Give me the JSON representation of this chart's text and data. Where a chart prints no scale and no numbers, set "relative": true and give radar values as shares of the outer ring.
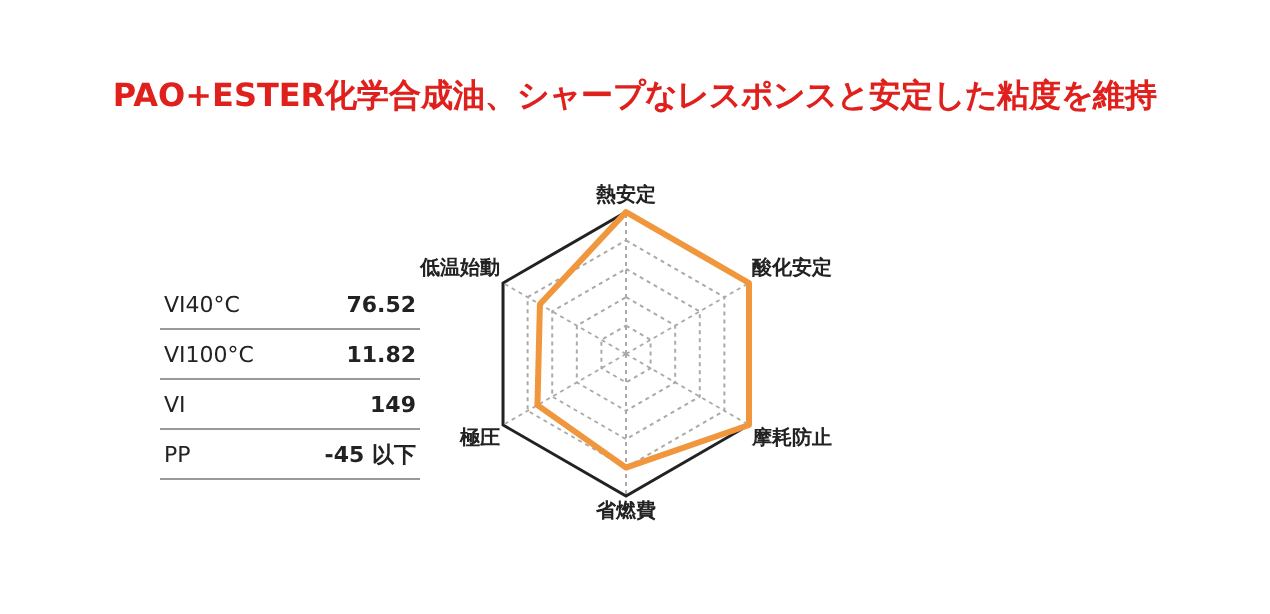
{
  "chart_data": [
    {
      "type": "other",
      "title": "PAO+ESTER化学合成油、シャープなレスポンスと安定した粘度を維持",
      "annotations": [
        "VI40°C",
        "76.52",
        "VI100°C",
        "11.82",
        "VI",
        "149",
        "PP",
        "-45 以下"
      ]
    },
    {
      "type": "radar",
      "categories": [
        "熱安定",
        "酸化安定",
        "摩耗防止",
        "省燃費",
        "極圧",
        "低温始動"
      ],
      "relative": true,
      "series": [
        {
          "color": "#f0963c",
          "values": [
            1,
            1,
            1,
            0.8,
            0.72,
            0.7
          ]
        }
      ]
    }
  ]
}
